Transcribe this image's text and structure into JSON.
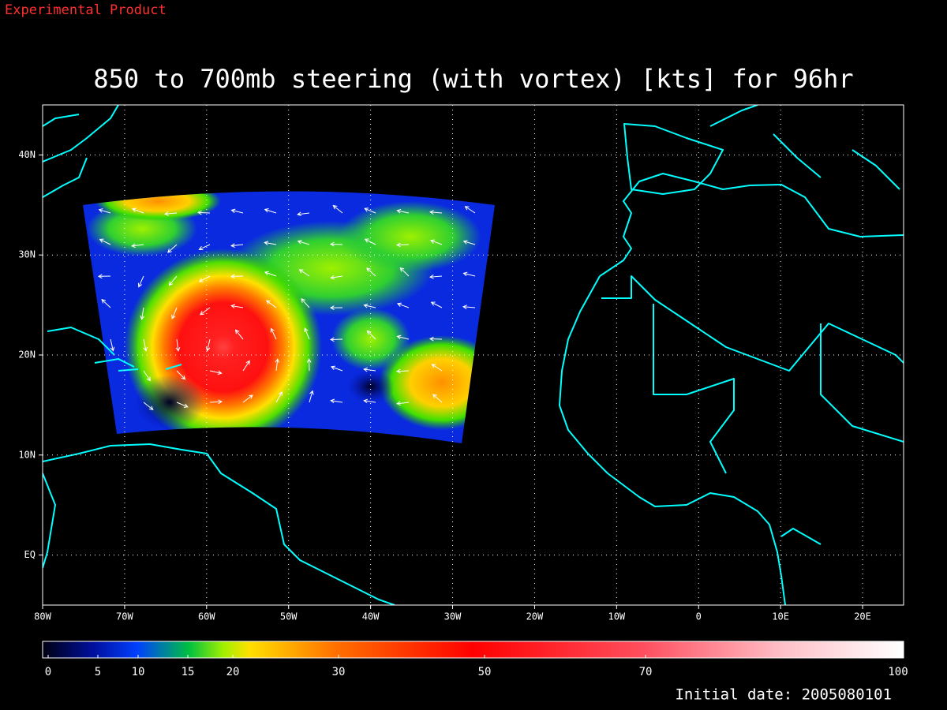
{
  "experimental_label": "Experimental Product",
  "title": "850 to 700mb steering (with vortex) [kts] for 96hr",
  "map": {
    "xlim": [
      -80,
      25
    ],
    "xticks": [
      {
        "value": -80,
        "label": "80W"
      },
      {
        "value": -70,
        "label": "70W"
      },
      {
        "value": -60,
        "label": "60W"
      },
      {
        "value": -50,
        "label": "50W"
      },
      {
        "value": -40,
        "label": "40W"
      },
      {
        "value": -30,
        "label": "30W"
      },
      {
        "value": -20,
        "label": "20W"
      },
      {
        "value": -10,
        "label": "10W"
      },
      0,
      {
        "value": 10,
        "label": "10E"
      },
      {
        "value": 20,
        "label": "20E"
      }
    ],
    "ylim": [
      -5,
      45
    ],
    "yticks": [
      {
        "value": 0,
        "label": "EQ"
      },
      {
        "value": 10,
        "label": "10N"
      },
      {
        "value": 20,
        "label": "20N"
      },
      {
        "value": 30,
        "label": "30N"
      },
      {
        "value": 40,
        "label": "40N"
      }
    ],
    "grid": true
  },
  "colorbar": {
    "lim": [
      0,
      100
    ],
    "ticks": [
      0,
      5,
      10,
      15,
      20,
      30,
      50,
      70,
      100
    ]
  },
  "footer": "Initial date: 2005080101"
}
